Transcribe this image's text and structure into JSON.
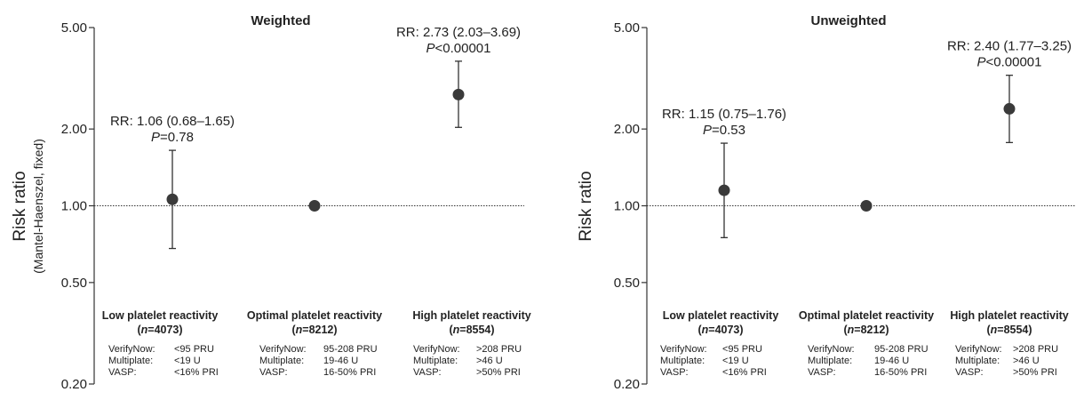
{
  "chart_data": [
    {
      "type": "scatter",
      "title": "Weighted",
      "ylabel": "Risk ratio",
      "ylabel_sub": "(Mantel-Haenszel, fixed)",
      "yscale": "log",
      "ylim": [
        0.2,
        5.0
      ],
      "yticks": [
        "5.00",
        "2.00",
        "1.00",
        "0.50",
        "0.20"
      ],
      "reference_line": 1.0,
      "grid": false,
      "categories": [
        {
          "name": "Low platelet reactivity",
          "n_prefix": "(",
          "n_var": "n",
          "n_value": "=4073)"
        },
        {
          "name": "Optimal platelet reactivity",
          "n_prefix": "(",
          "n_var": "n",
          "n_value": "=8212)"
        },
        {
          "name": "High platelet reactivity",
          "n_prefix": "(",
          "n_var": "n",
          "n_value": "=8554)"
        }
      ],
      "series": [
        {
          "values": [
            1.06,
            1.0,
            2.73
          ],
          "lower": [
            0.68,
            null,
            2.03
          ],
          "upper": [
            1.65,
            null,
            3.69
          ]
        }
      ],
      "annotations": [
        {
          "rr": "RR: 1.06 (0.68–1.65)",
          "p_var": "P",
          "p_text": "=0.78"
        },
        null,
        {
          "rr": "RR: 2.73 (2.03–3.69)",
          "p_var": "P",
          "p_text": "<0.00001"
        }
      ],
      "criteria": [
        [
          [
            "VerifyNow:",
            "<95  PRU"
          ],
          [
            "Multiplate:",
            "<19 U"
          ],
          [
            "VASP:",
            "<16% PRI"
          ]
        ],
        [
          [
            "VerifyNow:",
            "95-208  PRU"
          ],
          [
            "Multiplate:",
            "19-46 U"
          ],
          [
            "VASP:",
            "16-50% PRI"
          ]
        ],
        [
          [
            "VerifyNow:",
            ">208  PRU"
          ],
          [
            "Multiplate:",
            ">46 U"
          ],
          [
            "VASP:",
            ">50% PRI"
          ]
        ]
      ]
    },
    {
      "type": "scatter",
      "title": "Unweighted",
      "ylabel": "Risk ratio",
      "ylabel_sub": "",
      "yscale": "log",
      "ylim": [
        0.2,
        5.0
      ],
      "yticks": [
        "5.00",
        "2.00",
        "1.00",
        "0.50",
        "0.20"
      ],
      "reference_line": 1.0,
      "grid": false,
      "categories": [
        {
          "name": "Low platelet reactivity",
          "n_prefix": "(",
          "n_var": "n",
          "n_value": "=4073)"
        },
        {
          "name": "Optimal platelet reactivity",
          "n_prefix": "(",
          "n_var": "n",
          "n_value": "=8212)"
        },
        {
          "name": "High platelet reactivity",
          "n_prefix": "(",
          "n_var": "n",
          "n_value": "=8554)"
        }
      ],
      "series": [
        {
          "values": [
            1.15,
            1.0,
            2.4
          ],
          "lower": [
            0.75,
            null,
            1.77
          ],
          "upper": [
            1.76,
            null,
            3.25
          ]
        }
      ],
      "annotations": [
        {
          "rr": "RR: 1.15 (0.75–1.76)",
          "p_var": "P",
          "p_text": "=0.53"
        },
        null,
        {
          "rr": "RR: 2.40 (1.77–3.25)",
          "p_var": "P",
          "p_text": "<0.00001"
        }
      ],
      "criteria": [
        [
          [
            "VerifyNow:",
            "<95  PRU"
          ],
          [
            "Multiplate:",
            "<19 U"
          ],
          [
            "VASP:",
            "<16% PRI"
          ]
        ],
        [
          [
            "VerifyNow:",
            "95-208  PRU"
          ],
          [
            "Multiplate:",
            "19-46 U"
          ],
          [
            "VASP:",
            "16-50% PRI"
          ]
        ],
        [
          [
            "VerifyNow:",
            ">208  PRU"
          ],
          [
            "Multiplate:",
            ">46 U"
          ],
          [
            "VASP:",
            ">50% PRI"
          ]
        ]
      ]
    }
  ]
}
